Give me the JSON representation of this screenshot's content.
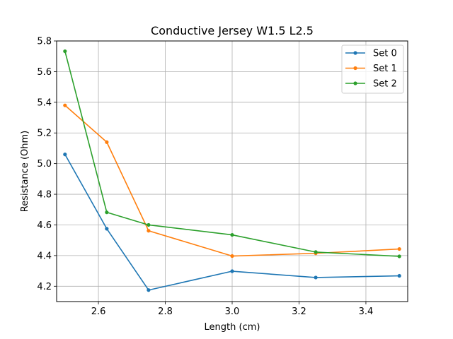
{
  "chart_data": {
    "type": "line",
    "title": "Conductive Jersey W1.5 L2.5",
    "xlabel": "Length (cm)",
    "ylabel": "Resistance (Ohm)",
    "xlim": [
      2.475,
      3.525
    ],
    "ylim": [
      4.1,
      5.8
    ],
    "xticks": [
      2.6,
      2.8,
      3.0,
      3.2,
      3.4
    ],
    "xtick_labels": [
      "2.6",
      "2.8",
      "3.0",
      "3.2",
      "3.4"
    ],
    "yticks": [
      4.2,
      4.4,
      4.6,
      4.8,
      5.0,
      5.2,
      5.4,
      5.6,
      5.8
    ],
    "ytick_labels": [
      "4.2",
      "4.4",
      "4.6",
      "4.8",
      "5.0",
      "5.2",
      "5.4",
      "5.6",
      "5.8"
    ],
    "grid": true,
    "legend_position": "top-right",
    "x": [
      2.5,
      2.625,
      2.75,
      3.0,
      3.25,
      3.5
    ],
    "series": [
      {
        "name": "Set 0",
        "color": "#1f77b4",
        "values": [
          5.06,
          4.575,
          4.175,
          4.298,
          4.257,
          4.268
        ]
      },
      {
        "name": "Set 1",
        "color": "#ff7f0e",
        "values": [
          5.38,
          5.14,
          4.562,
          4.397,
          4.415,
          4.443
        ]
      },
      {
        "name": "Set 2",
        "color": "#2ca02c",
        "values": [
          5.733,
          4.682,
          4.6,
          4.535,
          4.423,
          4.395
        ]
      }
    ]
  }
}
